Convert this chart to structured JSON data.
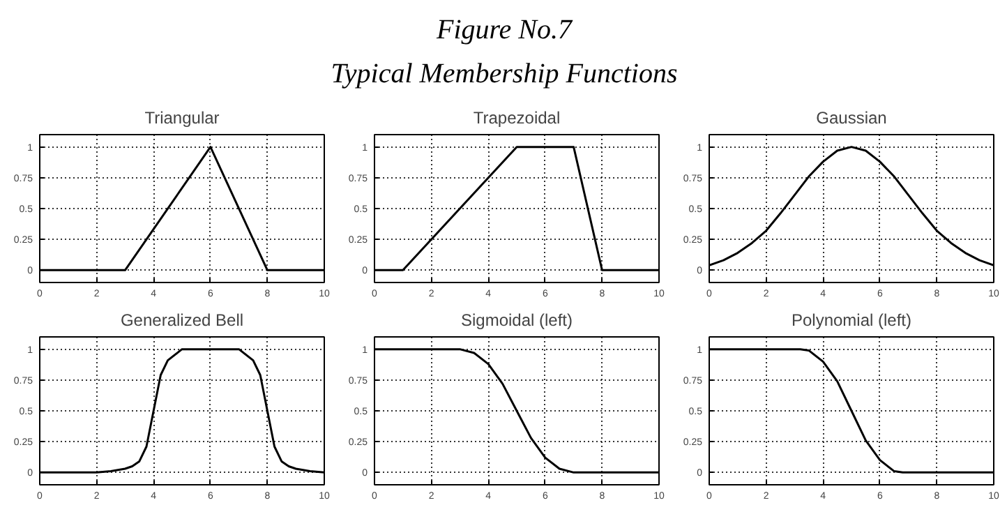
{
  "chart_data": [
    {
      "type": "other",
      "title": "Figure No.7",
      "subtitle": "Typical Membership Functions"
    },
    {
      "type": "line",
      "title": "Triangular",
      "x": [
        0,
        3,
        6,
        8,
        10
      ],
      "series": [
        {
          "color": "#000000",
          "values": [
            0,
            0,
            1,
            0,
            0
          ]
        }
      ],
      "xlim": [
        0,
        10
      ],
      "ylim": [
        -0.1,
        1.1
      ],
      "xticks": [
        0,
        2,
        4,
        6,
        8,
        10
      ],
      "yticks": [
        0,
        0.25,
        0.5,
        0.75,
        1
      ],
      "grid": true,
      "marker": "none",
      "line_style": "solid"
    },
    {
      "type": "line",
      "title": "Trapezoidal",
      "x": [
        0,
        1,
        5,
        7,
        8,
        10
      ],
      "series": [
        {
          "color": "#000000",
          "values": [
            0,
            0,
            1,
            1,
            0,
            0
          ]
        }
      ],
      "xlim": [
        0,
        10
      ],
      "ylim": [
        -0.1,
        1.1
      ],
      "xticks": [
        0,
        2,
        4,
        6,
        8,
        10
      ],
      "yticks": [
        0,
        0.25,
        0.5,
        0.75,
        1
      ],
      "grid": true,
      "marker": "none",
      "line_style": "solid"
    },
    {
      "type": "line",
      "title": "Gaussian",
      "x": [
        0,
        0.5,
        1,
        1.5,
        2,
        2.5,
        3,
        3.5,
        4,
        4.5,
        5,
        5.5,
        6,
        6.5,
        7,
        7.5,
        8,
        8.5,
        9,
        9.5,
        10
      ],
      "series": [
        {
          "color": "#000000",
          "values": [
            0.04,
            0.08,
            0.14,
            0.22,
            0.32,
            0.46,
            0.61,
            0.76,
            0.88,
            0.97,
            1,
            0.97,
            0.88,
            0.76,
            0.61,
            0.46,
            0.32,
            0.22,
            0.14,
            0.08,
            0.04
          ]
        }
      ],
      "xlim": [
        0,
        10
      ],
      "ylim": [
        -0.1,
        1.1
      ],
      "xticks": [
        0,
        2,
        4,
        6,
        8,
        10
      ],
      "yticks": [
        0,
        0.25,
        0.5,
        0.75,
        1
      ],
      "grid": true,
      "marker": "none",
      "line_style": "solid"
    },
    {
      "type": "line",
      "title": "Generalized Bell",
      "x": [
        0,
        2,
        2.5,
        3,
        3.25,
        3.5,
        3.75,
        4,
        4.25,
        4.5,
        5,
        6,
        7,
        7.5,
        7.75,
        8,
        8.25,
        8.5,
        8.75,
        9,
        9.5,
        10
      ],
      "series": [
        {
          "color": "#000000",
          "values": [
            0,
            0,
            0.01,
            0.03,
            0.05,
            0.09,
            0.21,
            0.5,
            0.79,
            0.91,
            1,
            1,
            1,
            0.91,
            0.79,
            0.5,
            0.21,
            0.09,
            0.05,
            0.03,
            0.01,
            0
          ]
        }
      ],
      "xlim": [
        0,
        10
      ],
      "ylim": [
        -0.1,
        1.1
      ],
      "xticks": [
        0,
        2,
        4,
        6,
        8,
        10
      ],
      "yticks": [
        0,
        0.25,
        0.5,
        0.75,
        1
      ],
      "grid": true,
      "marker": "none",
      "line_style": "solid"
    },
    {
      "type": "line",
      "title": "Sigmoidal (left)",
      "x": [
        0,
        3,
        3.5,
        4,
        4.5,
        5,
        5.5,
        6,
        6.5,
        7,
        10
      ],
      "series": [
        {
          "color": "#000000",
          "values": [
            1,
            1,
            0.97,
            0.88,
            0.72,
            0.5,
            0.28,
            0.12,
            0.03,
            0,
            0
          ]
        }
      ],
      "xlim": [
        0,
        10
      ],
      "ylim": [
        -0.1,
        1.1
      ],
      "xticks": [
        0,
        2,
        4,
        6,
        8,
        10
      ],
      "yticks": [
        0,
        0.25,
        0.5,
        0.75,
        1
      ],
      "grid": true,
      "marker": "none",
      "line_style": "solid"
    },
    {
      "type": "line",
      "title": "Polynomial (left)",
      "x": [
        0,
        3.2,
        3.5,
        4,
        4.5,
        5,
        5.5,
        6,
        6.5,
        6.8,
        10
      ],
      "series": [
        {
          "color": "#000000",
          "values": [
            1,
            1,
            0.99,
            0.9,
            0.74,
            0.5,
            0.26,
            0.1,
            0.01,
            0,
            0
          ]
        }
      ],
      "xlim": [
        0,
        10
      ],
      "ylim": [
        -0.1,
        1.1
      ],
      "xticks": [
        0,
        2,
        4,
        6,
        8,
        10
      ],
      "yticks": [
        0,
        0.25,
        0.5,
        0.75,
        1
      ],
      "grid": true,
      "marker": "none",
      "line_style": "solid"
    }
  ]
}
